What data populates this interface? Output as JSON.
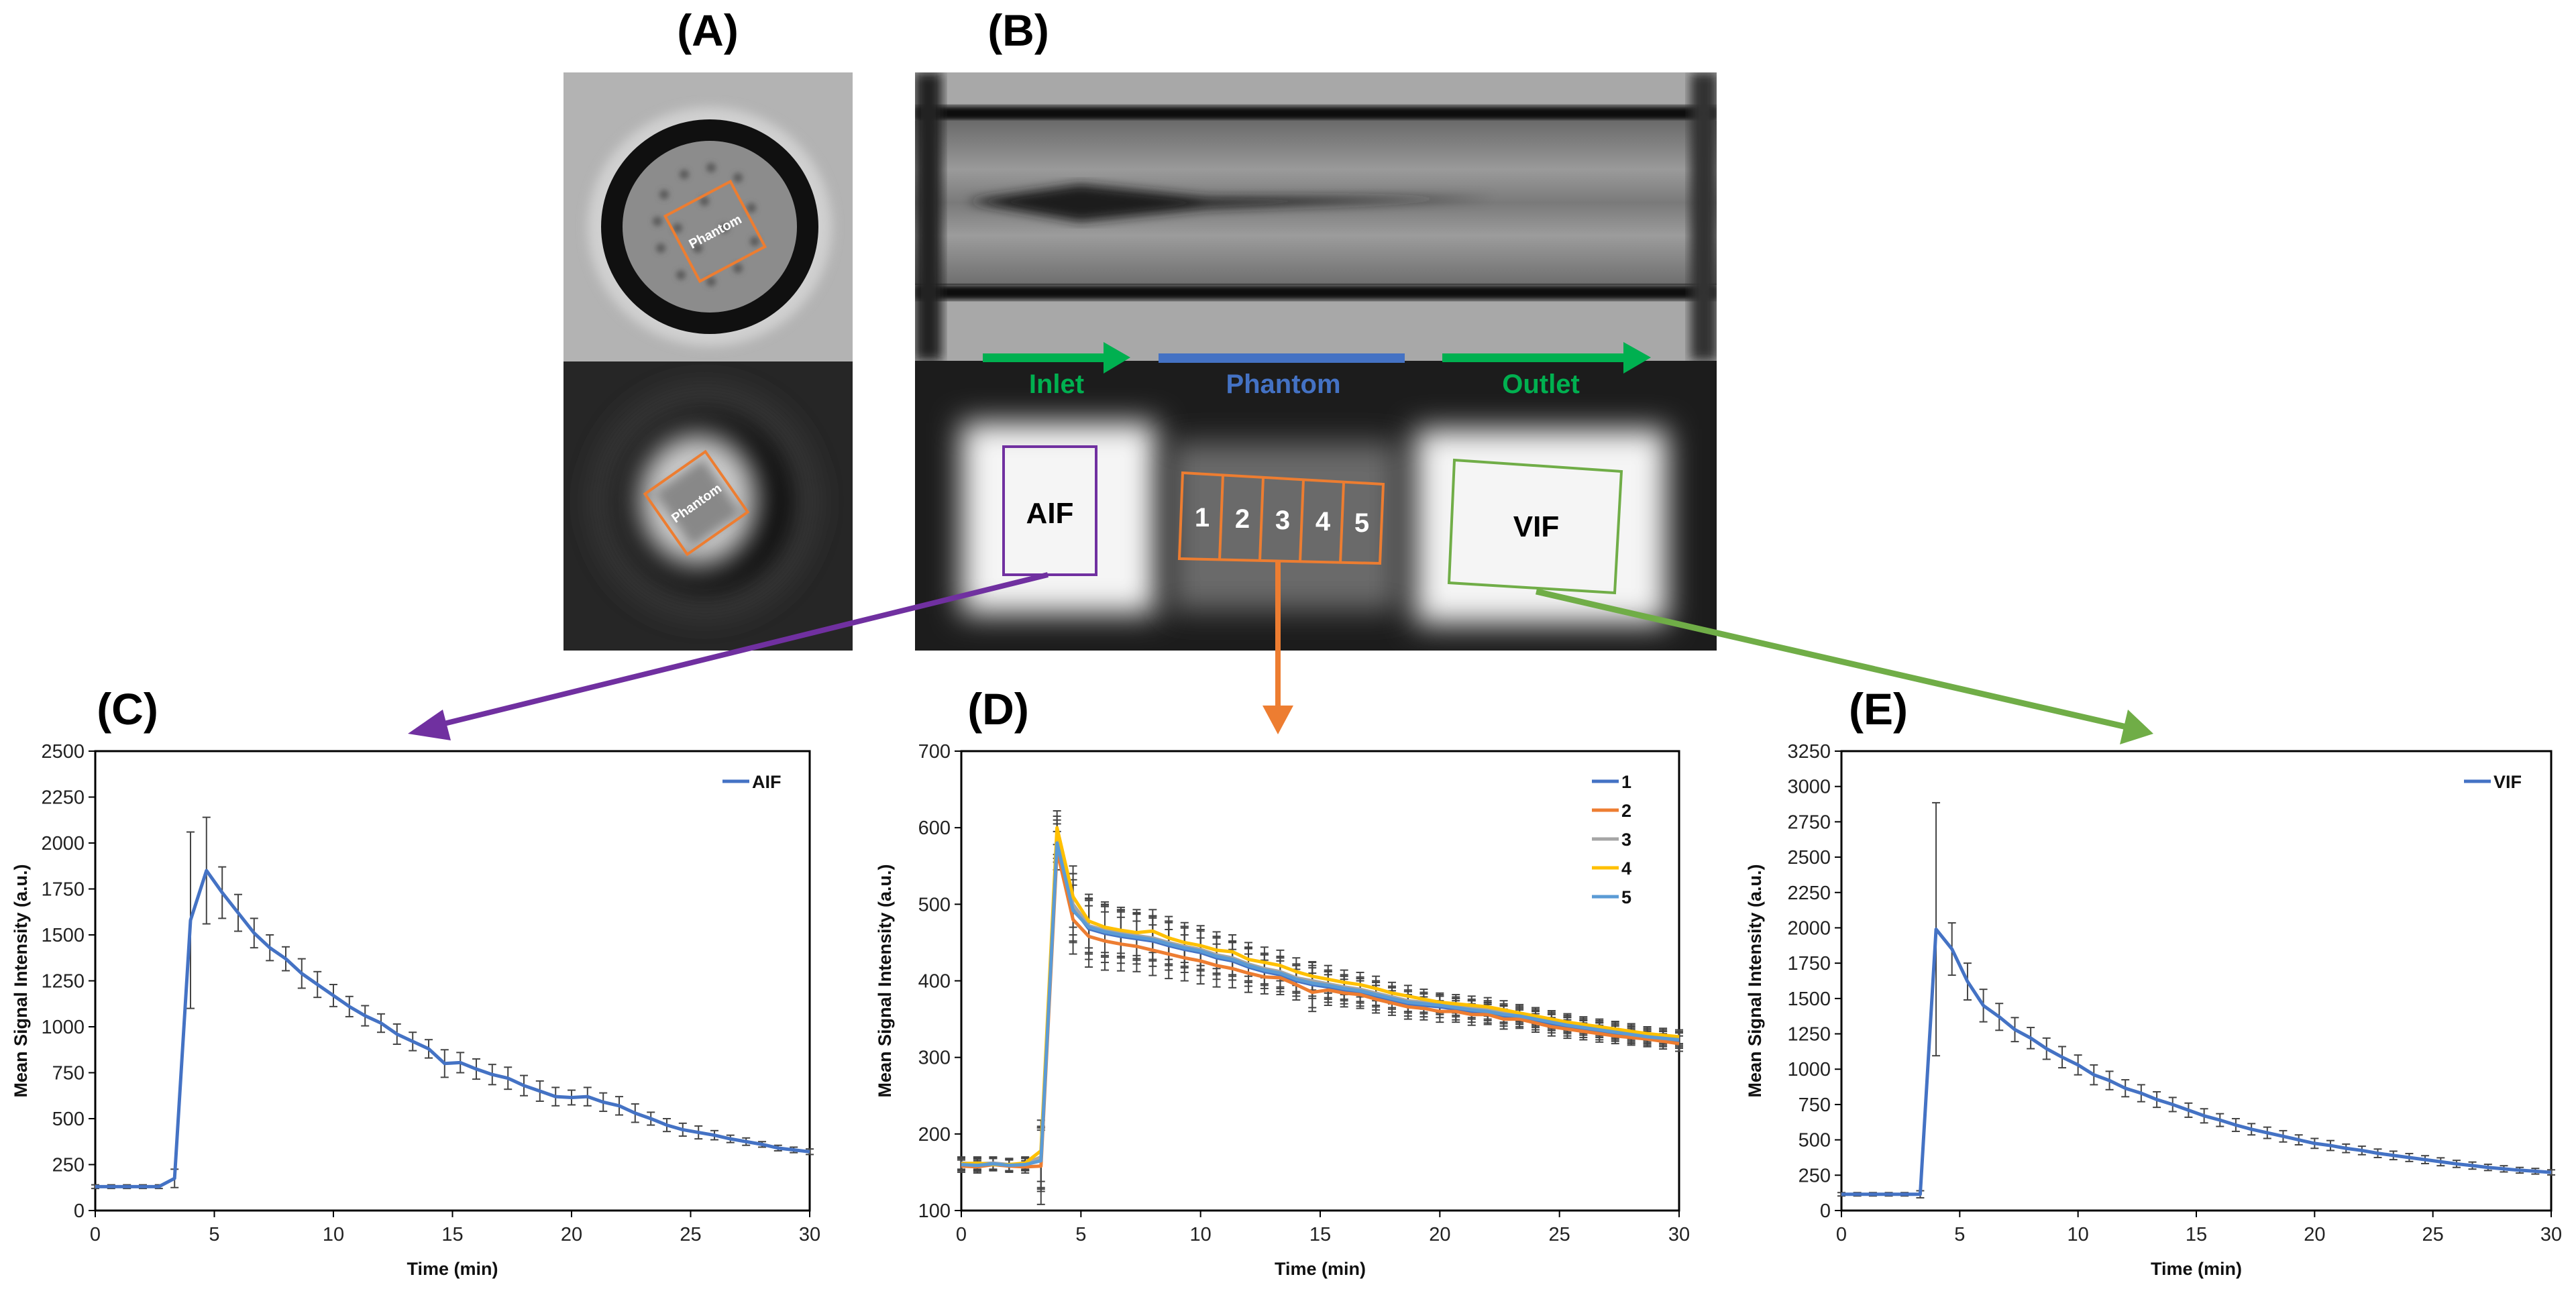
{
  "panels": {
    "A": {
      "label": "(A)",
      "roi_label_top": "Phantom",
      "roi_label_bottom": "Phantom"
    },
    "B": {
      "label": "(B)",
      "inlet": "Inlet",
      "phantom": "Phantom",
      "outlet": "Outlet",
      "aif": "AIF",
      "vif": "VIF",
      "segments": [
        "1",
        "2",
        "3",
        "4",
        "5"
      ]
    }
  },
  "colors": {
    "aif_arrow": "#7030A0",
    "phantom_arrow": "#ED7D31",
    "vif_arrow": "#70AD47",
    "inlet_outlet": "#00B050",
    "phantom_bar": "#4472C4"
  },
  "chart_data": [
    {
      "panel": "(C)",
      "type": "line",
      "xlabel": "Time (min)",
      "ylabel": "Mean Signal Intensity (a.u.)",
      "xlim": [
        0,
        30
      ],
      "xticks": [
        0,
        5,
        10,
        15,
        20,
        25,
        30
      ],
      "ylim": [
        0,
        2500
      ],
      "yticks": [
        0,
        250,
        500,
        750,
        1000,
        1250,
        1500,
        1750,
        2000,
        2250,
        2500
      ],
      "grid": false,
      "legend": "top-right",
      "x": [
        0,
        0.67,
        1.33,
        2,
        2.67,
        3.33,
        4,
        4.67,
        5.33,
        6,
        6.67,
        7.33,
        8,
        8.67,
        9.33,
        10,
        10.67,
        11.33,
        12,
        12.67,
        13.33,
        14,
        14.67,
        15.33,
        16,
        16.67,
        17.33,
        18,
        18.67,
        19.33,
        20,
        20.67,
        21.33,
        22,
        22.67,
        23.33,
        24,
        24.67,
        25.33,
        26,
        26.67,
        27.33,
        28,
        28.67,
        29.33,
        30
      ],
      "series": [
        {
          "name": "AIF",
          "color": "#4472C4",
          "values": [
            130,
            130,
            130,
            130,
            130,
            175,
            1580,
            1850,
            1730,
            1620,
            1510,
            1430,
            1370,
            1290,
            1230,
            1170,
            1110,
            1060,
            1020,
            960,
            920,
            880,
            800,
            805,
            770,
            740,
            720,
            680,
            650,
            620,
            615,
            620,
            590,
            570,
            530,
            500,
            465,
            440,
            425,
            410,
            390,
            375,
            360,
            340,
            330,
            320
          ],
          "errors": [
            10,
            10,
            10,
            10,
            10,
            50,
            480,
            290,
            140,
            100,
            80,
            70,
            65,
            80,
            70,
            60,
            55,
            55,
            50,
            55,
            50,
            50,
            75,
            55,
            55,
            55,
            60,
            55,
            55,
            50,
            40,
            50,
            50,
            50,
            50,
            35,
            35,
            35,
            35,
            25,
            20,
            20,
            15,
            15,
            15,
            15
          ]
        }
      ]
    },
    {
      "panel": "(D)",
      "type": "line",
      "xlabel": "Time (min)",
      "ylabel": "Mean Signal Intensity (a.u.)",
      "xlim": [
        0,
        30
      ],
      "xticks": [
        0,
        5,
        10,
        15,
        20,
        25,
        30
      ],
      "ylim": [
        100,
        700
      ],
      "yticks": [
        100,
        200,
        300,
        400,
        500,
        600,
        700
      ],
      "grid": false,
      "legend": "top-right",
      "x": [
        0,
        0.67,
        1.33,
        2,
        2.67,
        3.33,
        4,
        4.67,
        5.33,
        6,
        6.67,
        7.33,
        8,
        8.67,
        9.33,
        10,
        10.67,
        11.33,
        12,
        12.67,
        13.33,
        14,
        14.67,
        15.33,
        16,
        16.67,
        17.33,
        18,
        18.67,
        19.33,
        20,
        20.67,
        21.33,
        22,
        22.67,
        23.33,
        24,
        24.67,
        25.33,
        26,
        26.67,
        27.33,
        28,
        28.67,
        29.33,
        30
      ],
      "series": [
        {
          "name": "1",
          "color": "#4472C4",
          "values": [
            160,
            160,
            161,
            159,
            160,
            168,
            585,
            495,
            468,
            462,
            458,
            455,
            452,
            446,
            441,
            437,
            430,
            426,
            418,
            412,
            408,
            400,
            395,
            392,
            388,
            385,
            380,
            375,
            370,
            368,
            366,
            363,
            360,
            358,
            354,
            352,
            348,
            344,
            340,
            337,
            334,
            331,
            328,
            326,
            324,
            322
          ],
          "errors": [
            8,
            8,
            8,
            8,
            8,
            40,
            25,
            45,
            40,
            38,
            35,
            33,
            33,
            32,
            30,
            30,
            28,
            25,
            25,
            22,
            22,
            20,
            30,
            20,
            18,
            18,
            18,
            16,
            16,
            15,
            14,
            14,
            14,
            13,
            13,
            12,
            12,
            12,
            12,
            11,
            11,
            10,
            10,
            10,
            10,
            10
          ]
        },
        {
          "name": "2",
          "color": "#ED7D31",
          "values": [
            158,
            157,
            160,
            158,
            157,
            158,
            570,
            480,
            458,
            452,
            448,
            445,
            440,
            435,
            430,
            426,
            420,
            416,
            410,
            405,
            404,
            395,
            385,
            388,
            384,
            382,
            376,
            371,
            366,
            364,
            360,
            360,
            356,
            356,
            350,
            350,
            345,
            340,
            337,
            334,
            331,
            328,
            326,
            324,
            321,
            318
          ],
          "errors": [
            8,
            8,
            8,
            8,
            8,
            50,
            25,
            45,
            40,
            38,
            35,
            33,
            33,
            32,
            30,
            30,
            28,
            25,
            25,
            22,
            22,
            20,
            25,
            20,
            18,
            18,
            18,
            16,
            16,
            15,
            14,
            14,
            14,
            13,
            13,
            12,
            12,
            12,
            12,
            11,
            11,
            10,
            10,
            10,
            10,
            10
          ]
        },
        {
          "name": "3",
          "color": "#A5A5A5",
          "values": [
            162,
            161,
            162,
            160,
            161,
            170,
            590,
            500,
            472,
            466,
            462,
            459,
            456,
            450,
            445,
            441,
            434,
            430,
            422,
            416,
            412,
            404,
            400,
            396,
            392,
            389,
            384,
            379,
            374,
            372,
            370,
            367,
            364,
            362,
            358,
            356,
            352,
            348,
            344,
            341,
            338,
            335,
            332,
            329,
            327,
            325
          ],
          "errors": [
            8,
            8,
            8,
            8,
            8,
            40,
            25,
            40,
            35,
            33,
            30,
            30,
            28,
            28,
            26,
            26,
            24,
            22,
            22,
            20,
            20,
            18,
            20,
            18,
            16,
            16,
            16,
            14,
            14,
            13,
            12,
            12,
            12,
            12,
            12,
            11,
            11,
            11,
            11,
            10,
            10,
            10,
            10,
            9,
            9,
            9
          ]
        },
        {
          "name": "4",
          "color": "#FFC000",
          "values": [
            161,
            162,
            160,
            160,
            162,
            178,
            600,
            510,
            478,
            470,
            466,
            463,
            465,
            456,
            450,
            446,
            440,
            438,
            428,
            424,
            420,
            412,
            406,
            402,
            398,
            395,
            390,
            384,
            380,
            376,
            372,
            370,
            368,
            366,
            362,
            358,
            354,
            350,
            346,
            343,
            340,
            337,
            334,
            331,
            329,
            327
          ],
          "errors": [
            8,
            8,
            8,
            8,
            8,
            40,
            22,
            40,
            35,
            33,
            30,
            30,
            28,
            28,
            26,
            26,
            24,
            22,
            22,
            20,
            20,
            18,
            18,
            18,
            16,
            16,
            16,
            14,
            14,
            13,
            12,
            12,
            12,
            12,
            12,
            11,
            11,
            11,
            11,
            10,
            10,
            10,
            10,
            9,
            9,
            9
          ]
        },
        {
          "name": "5",
          "color": "#5B9BD5",
          "values": [
            160,
            159,
            161,
            159,
            160,
            165,
            580,
            492,
            470,
            464,
            460,
            457,
            454,
            448,
            443,
            439,
            432,
            428,
            420,
            414,
            410,
            402,
            397,
            394,
            390,
            387,
            382,
            377,
            372,
            370,
            368,
            365,
            362,
            360,
            356,
            354,
            350,
            346,
            342,
            339,
            336,
            333,
            330,
            327,
            325,
            323
          ],
          "errors": [
            8,
            8,
            8,
            8,
            8,
            40,
            25,
            40,
            35,
            33,
            30,
            30,
            28,
            28,
            26,
            26,
            24,
            22,
            22,
            20,
            20,
            18,
            20,
            18,
            16,
            16,
            16,
            14,
            14,
            13,
            12,
            12,
            12,
            12,
            12,
            11,
            11,
            11,
            11,
            10,
            10,
            10,
            10,
            9,
            9,
            9
          ]
        }
      ]
    },
    {
      "panel": "(E)",
      "type": "line",
      "xlabel": "Time (min)",
      "ylabel": "Mean Signal Intensity (a.u.)",
      "xlim": [
        0,
        30
      ],
      "xticks": [
        0,
        5,
        10,
        15,
        20,
        25,
        30
      ],
      "ylim": [
        0,
        3250
      ],
      "yticks": [
        0,
        250,
        500,
        750,
        1000,
        1250,
        1500,
        1750,
        2000,
        2250,
        2500,
        2750,
        3000,
        3250
      ],
      "grid": false,
      "legend": "top-right",
      "x": [
        0,
        0.67,
        1.33,
        2,
        2.67,
        3.33,
        4,
        4.67,
        5.33,
        6,
        6.67,
        7.33,
        8,
        8.67,
        9.33,
        10,
        10.67,
        11.33,
        12,
        12.67,
        13.33,
        14,
        14.67,
        15.33,
        16,
        16.67,
        17.33,
        18,
        18.67,
        19.33,
        20,
        20.67,
        21.33,
        22,
        22.67,
        23.33,
        24,
        24.67,
        25.33,
        26,
        26.67,
        27.33,
        28,
        28.67,
        29.33,
        30
      ],
      "series": [
        {
          "name": "VIF",
          "color": "#4472C4",
          "values": [
            115,
            115,
            115,
            115,
            115,
            115,
            1990,
            1850,
            1620,
            1450,
            1370,
            1280,
            1220,
            1145,
            1085,
            1030,
            960,
            920,
            865,
            830,
            785,
            750,
            710,
            670,
            640,
            605,
            575,
            550,
            525,
            500,
            475,
            460,
            440,
            425,
            405,
            390,
            375,
            360,
            345,
            330,
            318,
            305,
            295,
            285,
            278,
            270
          ],
          "errors": [
            12,
            12,
            12,
            12,
            12,
            25,
            895,
            185,
            130,
            115,
            95,
            85,
            75,
            75,
            75,
            70,
            70,
            65,
            60,
            60,
            55,
            50,
            50,
            50,
            45,
            45,
            40,
            40,
            40,
            35,
            35,
            35,
            30,
            30,
            30,
            30,
            28,
            28,
            28,
            25,
            25,
            22,
            22,
            20,
            20,
            18
          ]
        }
      ]
    }
  ]
}
